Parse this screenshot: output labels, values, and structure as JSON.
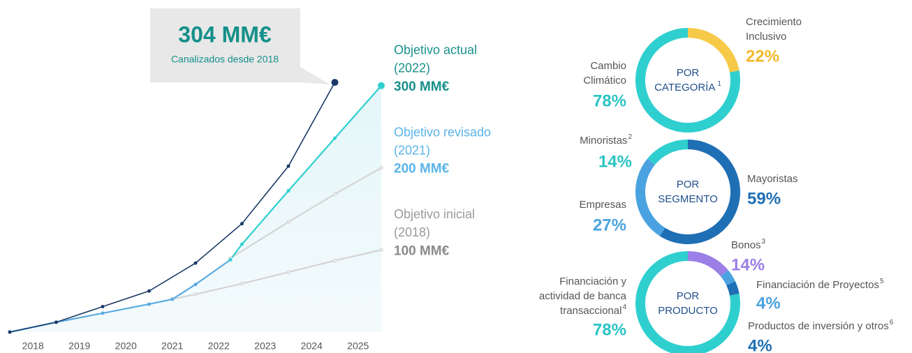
{
  "chart_data": [
    {
      "type": "line",
      "xlim": [
        2017.5,
        2025.5
      ],
      "xticks": [
        2018,
        2019,
        2020,
        2021,
        2022,
        2023,
        2024,
        2025
      ],
      "ylim": [
        0,
        310
      ],
      "callout": "Canalizados desde 2018",
      "series": [
        {
          "color": "#1b3a66",
          "x": [
            2017.5,
            2018.5,
            2019.5,
            2020.5,
            2021.5,
            2022.5,
            2023.5,
            2024.5
          ],
          "values": [
            0,
            12,
            31,
            50,
            84,
            132,
            202,
            304
          ],
          "value_labels": [
            null,
            null,
            null,
            null,
            null,
            null,
            null,
            "304 MM€"
          ]
        },
        {
          "color": "#5aabe0",
          "x": [
            2017.5,
            2018.5,
            2019.5,
            2020.5,
            2021.0,
            2021.5,
            2022.25
          ],
          "values": [
            0,
            12,
            23,
            34,
            40,
            58,
            88
          ]
        },
        {
          "name": "Objetivo actual",
          "period": "(2022)",
          "color": "#2fcfcf",
          "label_color": "#17908a",
          "x": [
            2022.25,
            2022.5,
            2023.5,
            2024.5,
            2025.5
          ],
          "values": [
            88,
            107,
            172,
            236,
            300
          ],
          "value_labels": [
            null,
            null,
            null,
            null,
            "300 MM€"
          ]
        },
        {
          "name": "Objetivo revisado",
          "period": "(2021)",
          "color": "#d4d4d4",
          "label_color": "#5ab4e8",
          "x": [
            2022.25,
            2023.5,
            2024.5,
            2025.5
          ],
          "values": [
            90,
            134,
            168,
            200
          ],
          "value_labels": [
            null,
            null,
            null,
            "200 MM€"
          ]
        },
        {
          "name": "Objetivo inicial",
          "period": "(2018)",
          "color": "#d4d4d4",
          "label_color": "#9a9a9a",
          "x": [
            2021.0,
            2021.5,
            2022.5,
            2023.5,
            2024.5,
            2025.5
          ],
          "values": [
            40,
            46,
            59,
            73,
            87,
            100
          ],
          "value_labels": [
            null,
            null,
            null,
            null,
            null,
            "100 MM€"
          ]
        }
      ]
    },
    {
      "type": "donut",
      "title": [
        "POR",
        "CATEGORÍA"
      ],
      "title_note": "1",
      "categories": [
        [
          "Crecimiento",
          "Inclusivo"
        ],
        [
          "Cambio",
          "Climático"
        ]
      ],
      "notes": [
        null,
        null
      ],
      "values": [
        22,
        78
      ],
      "value_labels": [
        "22%",
        "78%"
      ],
      "colors": [
        "#f7c948",
        "#2fcfcf"
      ],
      "label_colors": [
        "#f2b92c",
        "#2bc4c4"
      ]
    },
    {
      "type": "donut",
      "title": [
        "POR",
        "SEGMENTO"
      ],
      "categories": [
        [
          "Mayoristas"
        ],
        [
          "Empresas"
        ],
        [
          "Minoristas"
        ]
      ],
      "notes": [
        null,
        null,
        "2"
      ],
      "values": [
        59,
        27,
        14
      ],
      "value_labels": [
        "59%",
        "27%",
        "14%"
      ],
      "colors": [
        "#1f6fb5",
        "#4aa3e0",
        "#2fcfcf"
      ],
      "label_colors": [
        "#1f6fb5",
        "#4aa3e0",
        "#2bc4c4"
      ]
    },
    {
      "type": "donut",
      "title": [
        "POR",
        "PRODUCTO"
      ],
      "categories": [
        [
          "Bonos"
        ],
        [
          "Financiación de Proyectos"
        ],
        [
          "Productos de inversión y otros"
        ],
        [
          "Financiación y",
          "actividad de banca",
          "transaccional"
        ]
      ],
      "notes": [
        "3",
        "5",
        "6",
        "4"
      ],
      "values": [
        14,
        4,
        4,
        78
      ],
      "value_labels": [
        "14%",
        "4%",
        "4%",
        "78%"
      ],
      "colors": [
        "#9b7fe6",
        "#4aa3e0",
        "#1f6fb5",
        "#2fcfcf"
      ],
      "label_colors": [
        "#9b7fe6",
        "#4aa3e0",
        "#1f6fb5",
        "#2bc4c4"
      ]
    }
  ]
}
